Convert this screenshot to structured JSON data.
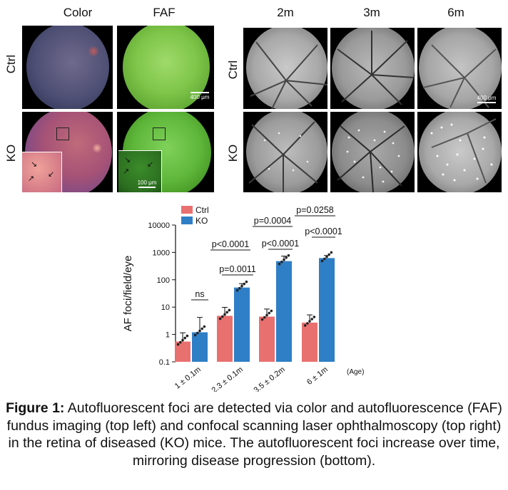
{
  "headers": {
    "color": "Color",
    "faf": "FAF",
    "m2": "2m",
    "m3": "3m",
    "m6": "6m"
  },
  "rows": {
    "ctrl": "Ctrl",
    "ko": "KO"
  },
  "scalebars": {
    "faf_ctrl": "400 μm",
    "inset": "100 μm",
    "cslo_ctrl": "400 μm"
  },
  "colors": {
    "ctrl": "#e8706f",
    "ko": "#2f7fc6"
  },
  "chart_data": {
    "type": "bar",
    "ylabel": "AF foci/field/eye",
    "yscale": "log",
    "ylim": [
      0.1,
      10000
    ],
    "yticks": [
      "0.1",
      "1",
      "10",
      "100",
      "1000",
      "10000"
    ],
    "categories": [
      "1 ± 0.1m",
      "2.3 ± 0.1m",
      "3.5 ± 0.2m",
      "6 ± 1m"
    ],
    "age_label": "(Age)",
    "series": [
      {
        "name": "Ctrl",
        "values": [
          0.55,
          4.8,
          4.5,
          2.7
        ],
        "errors": [
          0.6,
          5,
          4,
          2.5
        ]
      },
      {
        "name": "KO",
        "values": [
          1.2,
          52,
          480,
          620
        ],
        "errors": [
          3,
          20,
          250,
          150
        ]
      }
    ],
    "annotations": [
      {
        "text": "ns"
      },
      {
        "text": "p=0.0011"
      },
      {
        "text": "p<0.0001"
      },
      {
        "text": "p<0.0001"
      },
      {
        "text": "p<0.0001"
      },
      {
        "text": "p=0.0004"
      },
      {
        "text": "p=0.0258"
      }
    ]
  },
  "caption": {
    "title": "Figure 1:",
    "text": " Autofluorescent foci are detected via color and autofluorescence (FAF) fundus imaging (top left) and confocal scanning laser ophthalmoscopy (top right) in the retina of diseased (KO) mice. The autofluorescent foci increase over time, mirroring disease progression (bottom)."
  }
}
